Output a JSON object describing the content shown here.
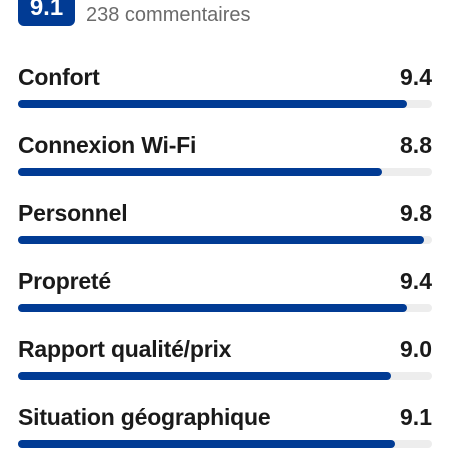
{
  "header": {
    "overall_score": 9.1,
    "reviews": "238 commentaires"
  },
  "ratings": {
    "xlim": [
      0,
      10
    ],
    "color": "#013b94",
    "items": [
      {
        "name": "Confort",
        "score": 9.4
      },
      {
        "name": "Connexion Wi-Fi",
        "score": 8.8
      },
      {
        "name": "Personnel",
        "score": 9.8
      },
      {
        "name": "Propreté",
        "score": 9.4
      },
      {
        "name": "Rapport qualité/prix",
        "score": {
          "value": 9,
          "label": "9.0"
        }
      },
      {
        "name": "Situation géographique",
        "score": 9.1
      }
    ]
  }
}
